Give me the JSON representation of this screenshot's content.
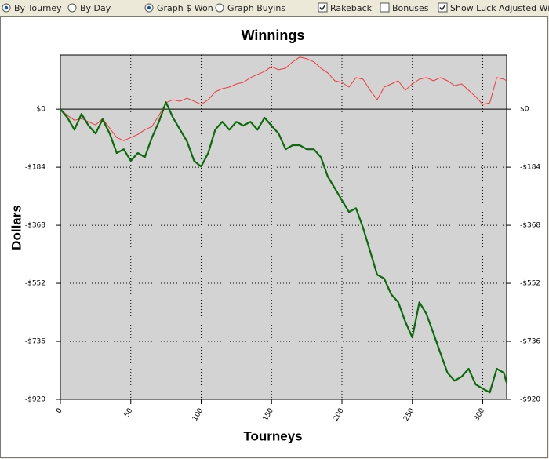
{
  "toolbar": {
    "radios": [
      {
        "label": "By Tourney",
        "selected": true
      },
      {
        "label": "By Day",
        "selected": false
      },
      {
        "label": "Graph $ Won",
        "selected": true
      },
      {
        "label": "Graph Buyins",
        "selected": false
      }
    ],
    "checkboxes": [
      {
        "label": "Rakeback",
        "checked": true
      },
      {
        "label": "Bonuses",
        "checked": false
      },
      {
        "label": "Show Luck Adjusted Win",
        "checked": true
      }
    ]
  },
  "chart_data": {
    "type": "line",
    "title": "Winnings",
    "x_label": "Tourneys",
    "y_label": "Dollars",
    "grid": true,
    "xlim": [
      0,
      317
    ],
    "xticks": [
      0,
      50,
      100,
      150,
      200,
      250,
      300
    ],
    "ylim": [
      -920,
      172
    ],
    "yticks": [
      {
        "value": -920,
        "label": "-$920"
      },
      {
        "value": -736,
        "label": "-$736"
      },
      {
        "value": -552,
        "label": "-$552"
      },
      {
        "value": -368,
        "label": "-$368"
      },
      {
        "value": -184,
        "label": "-$184"
      },
      {
        "value": 0,
        "label": "$0"
      }
    ],
    "x": [
      0,
      5,
      10,
      15,
      20,
      25,
      30,
      35,
      40,
      45,
      50,
      55,
      60,
      65,
      70,
      75,
      80,
      85,
      90,
      95,
      100,
      105,
      110,
      115,
      120,
      125,
      130,
      135,
      140,
      145,
      150,
      155,
      160,
      165,
      170,
      175,
      180,
      185,
      190,
      195,
      200,
      205,
      210,
      215,
      220,
      225,
      230,
      235,
      240,
      245,
      250,
      255,
      260,
      265,
      270,
      275,
      280,
      285,
      290,
      295,
      300,
      305,
      310,
      315,
      317
    ],
    "series": [
      {
        "color": "#ee3b3b",
        "width": 1,
        "values": [
          0,
          -20,
          -35,
          -30,
          -40,
          -50,
          -30,
          -60,
          -90,
          -100,
          -90,
          -80,
          -65,
          -55,
          -20,
          20,
          30,
          25,
          35,
          25,
          15,
          30,
          55,
          65,
          70,
          80,
          85,
          100,
          110,
          120,
          135,
          125,
          130,
          150,
          165,
          160,
          150,
          130,
          115,
          90,
          85,
          70,
          100,
          95,
          60,
          30,
          70,
          80,
          90,
          60,
          80,
          95,
          100,
          90,
          100,
          90,
          75,
          80,
          60,
          40,
          15,
          20,
          100,
          95,
          90
        ]
      },
      {
        "color": "#0a6b0a",
        "width": 2.2,
        "values": [
          0,
          -27,
          -65,
          -15,
          -52,
          -77,
          -32,
          -77,
          -139,
          -127,
          -164,
          -139,
          -152,
          -90,
          -40,
          22,
          -27,
          -65,
          -102,
          -164,
          -182,
          -139,
          -65,
          -40,
          -65,
          -40,
          -52,
          -40,
          -65,
          -27,
          -52,
          -77,
          -127,
          -114,
          -114,
          -127,
          -127,
          -152,
          -214,
          -251,
          -289,
          -326,
          -314,
          -376,
          -450,
          -525,
          -537,
          -587,
          -612,
          -674,
          -724,
          -612,
          -649,
          -711,
          -774,
          -836,
          -861,
          -848,
          -823,
          -873,
          -886,
          -898,
          -823,
          -836,
          -868
        ]
      }
    ]
  }
}
